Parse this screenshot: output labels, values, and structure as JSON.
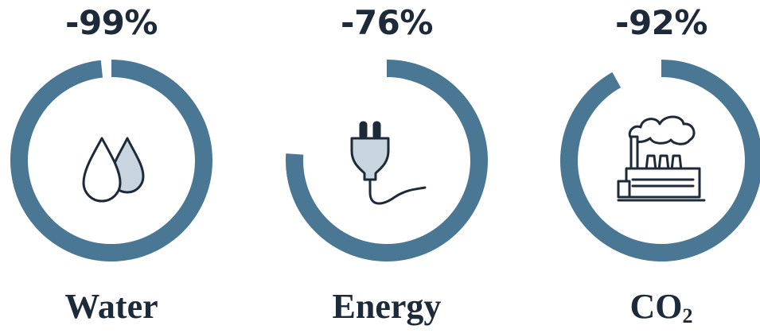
{
  "chart_data": {
    "type": "donut",
    "title": "",
    "colors": {
      "ring": "#4a7793",
      "icon_stroke": "#1d2a3a",
      "icon_fill": "#c8d5de"
    },
    "items": [
      {
        "label": "Water",
        "label_sub": "",
        "display": "-99%",
        "value": -99,
        "icon": "water-drops-icon",
        "gap_deg": 6
      },
      {
        "label": "Energy",
        "label_sub": "",
        "display": "-76%",
        "value": -76,
        "icon": "power-plug-icon",
        "gap_deg": 86
      },
      {
        "label": "CO",
        "label_sub": "2",
        "display": "-92%",
        "value": -92,
        "icon": "factory-icon",
        "gap_deg": 29
      }
    ]
  }
}
